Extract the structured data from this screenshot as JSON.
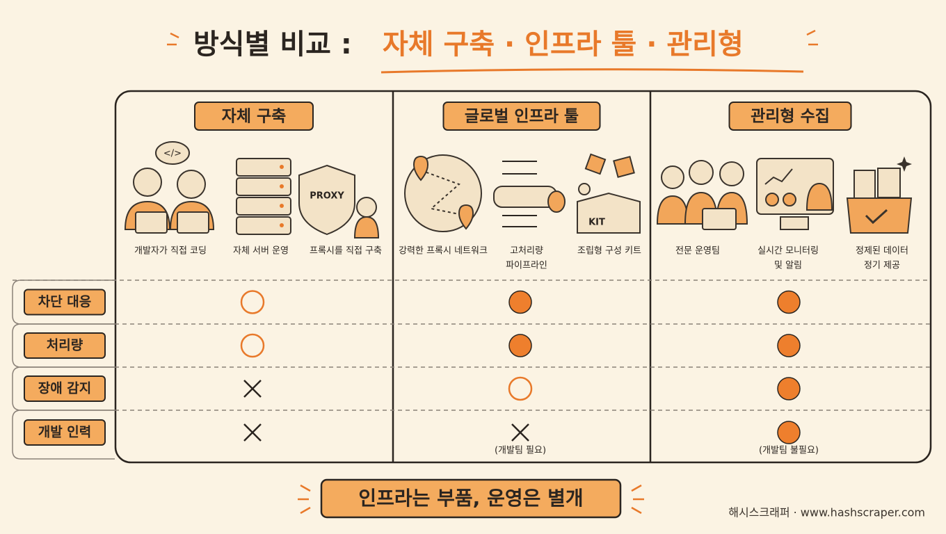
{
  "title": {
    "main": "방식별 비교 :",
    "highlight": "자체 구축 · 인프라 툴 · 관리형"
  },
  "columns": [
    {
      "header": "자체 구축",
      "items": [
        [
          "개발자가 직접 코딩"
        ],
        [
          "자체 서버 운영"
        ],
        [
          "프록시를 직접 구축"
        ]
      ]
    },
    {
      "header": "글로벌 인프라 툴",
      "items": [
        [
          "강력한 프록시 네트워크"
        ],
        [
          "고처리량",
          "파이프라인"
        ],
        [
          "조립형 구성 키트"
        ]
      ]
    },
    {
      "header": "관리형 수집",
      "items": [
        [
          "전문 운영팀"
        ],
        [
          "실시간 모니터링",
          "및 알림"
        ],
        [
          "정제된 데이터",
          "정기 제공"
        ]
      ]
    }
  ],
  "icon_texts": {
    "code": "</>",
    "proxy": "PROXY",
    "kit": "KIT"
  },
  "rows": [
    {
      "label": "차단 대응",
      "cells": [
        {
          "mark": "empty"
        },
        {
          "mark": "filled"
        },
        {
          "mark": "filled"
        }
      ]
    },
    {
      "label": "처리량",
      "cells": [
        {
          "mark": "empty"
        },
        {
          "mark": "filled"
        },
        {
          "mark": "filled"
        }
      ]
    },
    {
      "label": "장애 감지",
      "cells": [
        {
          "mark": "cross"
        },
        {
          "mark": "empty"
        },
        {
          "mark": "filled"
        }
      ]
    },
    {
      "label": "개발 인력",
      "cells": [
        {
          "mark": "cross"
        },
        {
          "mark": "cross",
          "note": "(개발팀 필요)"
        },
        {
          "mark": "filled",
          "note": "(개발팀 불필요)"
        }
      ]
    }
  ],
  "footer": {
    "banner": "인프라는 부품, 운영은 별개",
    "credit": "해시스크래퍼 · www.hashscraper.com"
  }
}
